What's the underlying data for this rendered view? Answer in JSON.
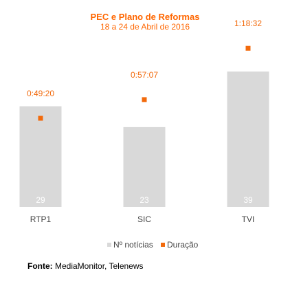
{
  "chart_data": {
    "type": "bar",
    "title": "PEC e Plano de Reformas",
    "subtitle": "18 a 24 de Abril de 2016",
    "categories": [
      "RTP1",
      "SIC",
      "TVI"
    ],
    "series": [
      {
        "name": "Nº notícias",
        "type": "bar",
        "values": [
          29,
          23,
          39
        ],
        "color": "#d9d9d9"
      },
      {
        "name": "Duração",
        "type": "scatter",
        "values": [
          "0:49:20",
          "0:57:07",
          "1:18:32"
        ],
        "values_seconds": [
          2960,
          3427,
          4712
        ],
        "color": "#f26a0c"
      }
    ],
    "bar_label_color": "#ffffff",
    "label_color": "#f26a0c",
    "legend": "bottom-center"
  },
  "source": {
    "label": "Fonte:",
    "text": "MediaMonitor, Telenews"
  }
}
